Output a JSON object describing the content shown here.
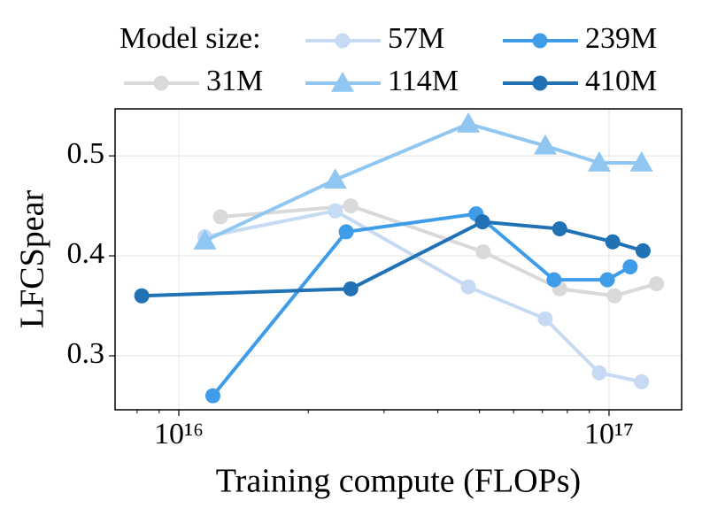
{
  "chart_data": {
    "type": "line",
    "ylabel": "LFCSpear",
    "xlabel": "Training compute (FLOPs)",
    "legend_title": "Model size:",
    "legend": "top-outside",
    "xscale": "log",
    "grid": true,
    "xlim": [
      7110000000000000.0,
      1.475e+17
    ],
    "ylim": [
      0.246,
      0.547
    ],
    "xticks": [
      {
        "value": 1e+16,
        "label": "10¹⁶"
      },
      {
        "value": 1e+17,
        "label": "10¹⁷"
      }
    ],
    "xminorticks": [
      8000000000000000.0,
      9000000000000000.0,
      2e+16,
      3e+16,
      4e+16,
      5e+16,
      6e+16,
      7e+16,
      8e+16,
      9e+16,
      2e+17
    ],
    "yticks": [
      0.3,
      0.4,
      0.5
    ],
    "series": [
      {
        "name": "31M",
        "color": "#d9d9d9",
        "marker": "o",
        "x": [
          1.25e+16,
          2.51e+16,
          5.1e+16,
          7.68e+16,
          1.03e+17,
          1.29e+17
        ],
        "values": [
          0.439,
          0.45,
          0.404,
          0.367,
          0.36,
          0.372
        ]
      },
      {
        "name": "57M",
        "color": "#c6dbf3",
        "marker": "o",
        "x": [
          1.15e+16,
          2.31e+16,
          4.71e+16,
          7.11e+16,
          9.49e+16,
          1.19e+17
        ],
        "values": [
          0.419,
          0.445,
          0.369,
          0.337,
          0.283,
          0.274
        ]
      },
      {
        "name": "114M",
        "color": "#90c6f2",
        "marker": "^",
        "x": [
          1.15e+16,
          2.31e+16,
          4.71e+16,
          7.11e+16,
          9.49e+16,
          1.19e+17
        ],
        "values": [
          0.415,
          0.476,
          0.532,
          0.51,
          0.493,
          0.493
        ]
      },
      {
        "name": "239M",
        "color": "#3f9ce8",
        "marker": "o",
        "x": [
          1.2e+16,
          2.45e+16,
          4.91e+16,
          7.45e+16,
          9.91e+16,
          1.12e+17
        ],
        "values": [
          0.26,
          0.424,
          0.442,
          0.376,
          0.376,
          0.389
        ]
      },
      {
        "name": "410M",
        "color": "#2171b5",
        "marker": "o",
        "x": [
          8200000000000000.0,
          2.51e+16,
          5.08e+16,
          7.68e+16,
          1.02e+17,
          1.2e+17
        ],
        "values": [
          0.36,
          0.367,
          0.434,
          0.427,
          0.414,
          0.405
        ]
      }
    ]
  }
}
